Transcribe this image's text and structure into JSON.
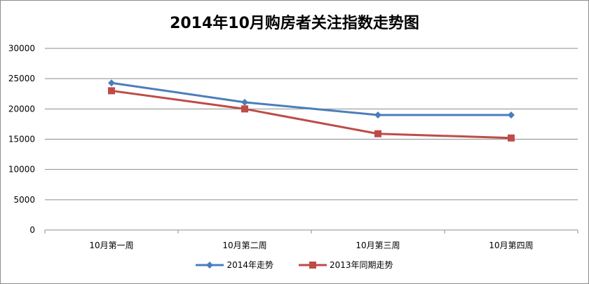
{
  "chart_data": {
    "type": "line",
    "title": "2014年10月购房者关注指数走势图",
    "categories": [
      "10月第一周",
      "10月第二周",
      "10月第三周",
      "10月第四周"
    ],
    "ylim": [
      0,
      30000
    ],
    "yticks": [
      0,
      5000,
      10000,
      15000,
      20000,
      25000,
      30000
    ],
    "grid": true,
    "legend_position": "bottom",
    "series": [
      {
        "name": "2014年走势",
        "values": [
          24300,
          21100,
          19000,
          19000
        ],
        "color": "#4a7ebb",
        "marker": "diamond"
      },
      {
        "name": "2013年同期走势",
        "values": [
          23000,
          20000,
          15900,
          15200
        ],
        "color": "#be4b48",
        "marker": "square"
      }
    ]
  }
}
